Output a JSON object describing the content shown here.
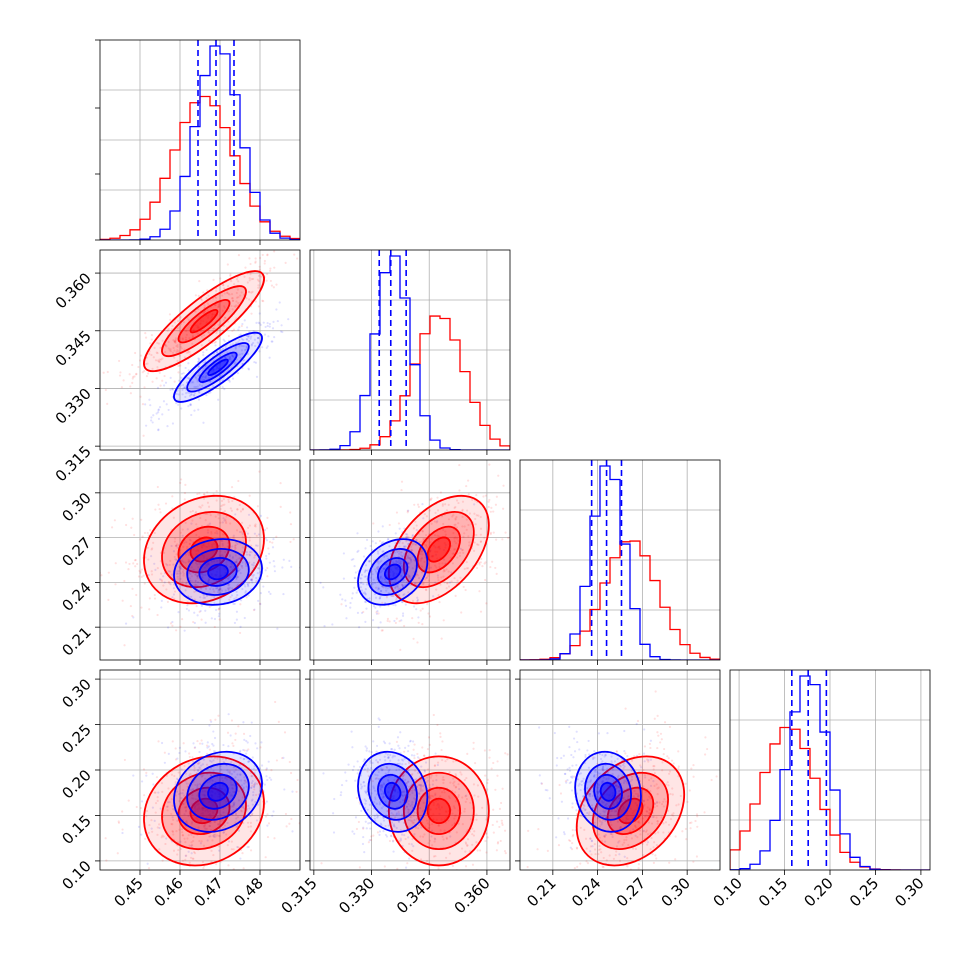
{
  "chart_data": {
    "type": "corner",
    "grid": true,
    "parameters": [
      {
        "range": [
          0.44,
          0.49
        ],
        "ticks": [
          0.45,
          0.46,
          0.47,
          0.48
        ],
        "tick_labels": [
          "0.45",
          "0.46",
          "0.47",
          "0.48"
        ]
      },
      {
        "range": [
          0.314,
          0.366
        ],
        "ticks": [
          0.315,
          0.33,
          0.345,
          0.36
        ],
        "tick_labels": [
          "0.315",
          "0.330",
          "0.345",
          "0.360"
        ]
      },
      {
        "range": [
          0.188,
          0.322
        ],
        "ticks": [
          0.21,
          0.24,
          0.27,
          0.3
        ],
        "tick_labels": [
          "0.21",
          "0.24",
          "0.27",
          "0.30"
        ]
      },
      {
        "range": [
          0.09,
          0.31
        ],
        "ticks": [
          0.1,
          0.15,
          0.2,
          0.25,
          0.3
        ],
        "tick_labels": [
          "0.10",
          "0.15",
          "0.20",
          "0.25",
          "0.30"
        ]
      }
    ],
    "series": [
      {
        "color": "#ff0000",
        "mean": [
          0.466,
          0.3475,
          0.262,
          0.155
        ],
        "std": [
          0.0075,
          0.0065,
          0.018,
          0.03
        ],
        "corr": [
          [
            1.0,
            0.85,
            0.2,
            0.15
          ],
          [
            0.85,
            1.0,
            0.45,
            0.0
          ],
          [
            0.2,
            0.45,
            1.0,
            0.3
          ],
          [
            0.15,
            0.0,
            0.3,
            1.0
          ]
        ]
      },
      {
        "color": "#0000ff",
        "mean": [
          0.4695,
          0.3355,
          0.247,
          0.176
        ],
        "std": [
          0.0055,
          0.0045,
          0.011,
          0.022
        ],
        "corr": [
          [
            1.0,
            0.85,
            0.1,
            0.2
          ],
          [
            0.85,
            1.0,
            0.3,
            -0.15
          ],
          [
            0.1,
            0.3,
            1.0,
            -0.1
          ],
          [
            0.2,
            -0.15,
            -0.1,
            1.0
          ]
        ],
        "quantiles": [
          [
            0.4645,
            0.469,
            0.4735
          ],
          [
            0.332,
            0.335,
            0.339
          ],
          [
            0.236,
            0.246,
            0.256
          ],
          [
            0.158,
            0.176,
            0.196
          ]
        ]
      }
    ]
  }
}
